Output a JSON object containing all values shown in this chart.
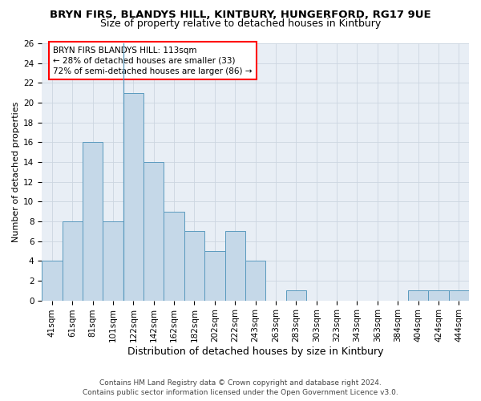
{
  "title1": "BRYN FIRS, BLANDYS HILL, KINTBURY, HUNGERFORD, RG17 9UE",
  "title2": "Size of property relative to detached houses in Kintbury",
  "xlabel": "Distribution of detached houses by size in Kintbury",
  "ylabel": "Number of detached properties",
  "footer1": "Contains HM Land Registry data © Crown copyright and database right 2024.",
  "footer2": "Contains public sector information licensed under the Open Government Licence v3.0.",
  "categories": [
    "41sqm",
    "61sqm",
    "81sqm",
    "101sqm",
    "122sqm",
    "142sqm",
    "162sqm",
    "182sqm",
    "202sqm",
    "222sqm",
    "243sqm",
    "263sqm",
    "283sqm",
    "303sqm",
    "323sqm",
    "343sqm",
    "363sqm",
    "384sqm",
    "404sqm",
    "424sqm",
    "444sqm"
  ],
  "values": [
    4,
    8,
    16,
    8,
    21,
    14,
    9,
    7,
    5,
    7,
    4,
    0,
    1,
    0,
    0,
    0,
    0,
    0,
    1,
    1,
    1
  ],
  "bar_color": "#c5d8e8",
  "bar_edge_color": "#5a9abe",
  "annotation_box_text": "BRYN FIRS BLANDYS HILL: 113sqm\n← 28% of detached houses are smaller (33)\n72% of semi-detached houses are larger (86) →",
  "annotation_box_color": "white",
  "annotation_box_edge_color": "red",
  "ylim": [
    0,
    26
  ],
  "yticks": [
    0,
    2,
    4,
    6,
    8,
    10,
    12,
    14,
    16,
    18,
    20,
    22,
    24,
    26
  ],
  "grid_color": "#ccd5e0",
  "background_color": "#e8eef5",
  "property_line_x": 3.5,
  "title1_fontsize": 9.5,
  "title2_fontsize": 9,
  "xlabel_fontsize": 9,
  "ylabel_fontsize": 8,
  "tick_fontsize": 7.5,
  "annotation_fontsize": 7.5,
  "footer_fontsize": 6.5
}
